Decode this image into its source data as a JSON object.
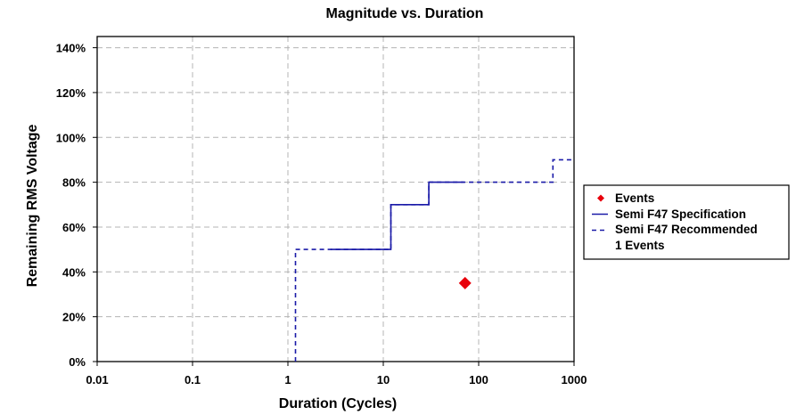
{
  "chart_data": {
    "type": "scatter",
    "title": "Magnitude vs. Duration",
    "xlabel": "Duration (Cycles)",
    "ylabel": "Remaining RMS Voltage",
    "x_scale": "log",
    "xlim": [
      0.01,
      1000
    ],
    "ylim": [
      0,
      145
    ],
    "x_ticks": [
      0.01,
      0.1,
      1,
      10,
      100,
      1000
    ],
    "x_tick_labels": [
      "0.01",
      "0.1",
      "1",
      "10",
      "100",
      "1000"
    ],
    "y_ticks": [
      0,
      20,
      40,
      60,
      80,
      100,
      120,
      140
    ],
    "y_tick_labels": [
      "0%",
      "20%",
      "40%",
      "60%",
      "80%",
      "100%",
      "120%",
      "140%"
    ],
    "grid": true,
    "legend_position": "right",
    "series": [
      {
        "name": "Events",
        "type": "scatter",
        "marker": "diamond",
        "color": "#e8000b",
        "points": [
          {
            "x": 72,
            "y": 35
          }
        ]
      },
      {
        "name": "Semi F47 Specification",
        "type": "line",
        "style": "solid",
        "color": "#1a1aa8",
        "x": [
          2.8,
          12,
          12,
          30,
          30,
          70
        ],
        "y": [
          50,
          50,
          70,
          70,
          80,
          80
        ]
      },
      {
        "name": "Semi F47 Recommended",
        "type": "line",
        "style": "dashed",
        "color": "#1a1aa8",
        "x": [
          1.2,
          1.2,
          12,
          12,
          30,
          30,
          600,
          600,
          1000
        ],
        "y": [
          0,
          50,
          50,
          70,
          70,
          80,
          80,
          90,
          90
        ]
      }
    ],
    "legend_note": "1 Events"
  }
}
